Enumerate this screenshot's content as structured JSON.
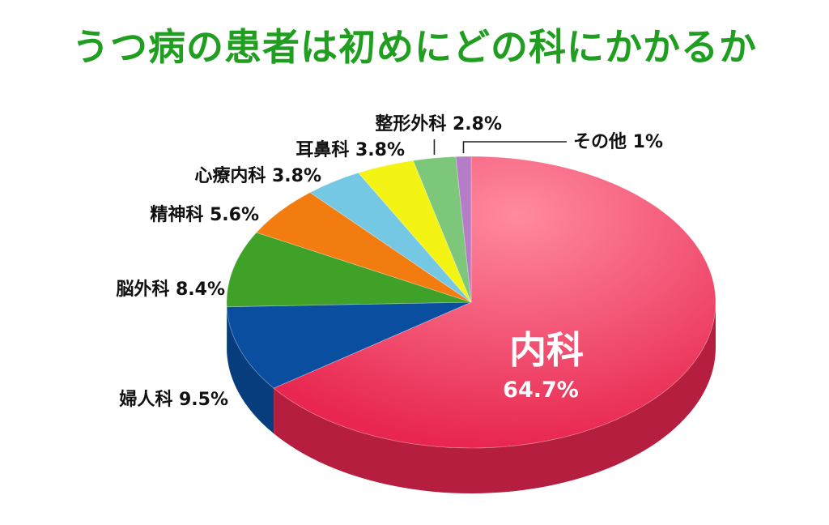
{
  "chart_data": {
    "type": "pie",
    "title": "うつ病の患者は初めにどの科にかかるか",
    "slices": [
      {
        "label": "内科",
        "value": 64.7,
        "value_label": "64.7%",
        "color": "#e8264f"
      },
      {
        "label": "婦人科",
        "value": 9.5,
        "value_label": "9.5%",
        "color": "#0a4ea0"
      },
      {
        "label": "脳外科",
        "value": 8.4,
        "value_label": "8.4%",
        "color": "#3fa127"
      },
      {
        "label": "精神科",
        "value": 5.6,
        "value_label": "5.6%",
        "color": "#f27c10"
      },
      {
        "label": "心療内科",
        "value": 3.8,
        "value_label": "3.8%",
        "color": "#74c8e4"
      },
      {
        "label": "耳鼻科",
        "value": 3.8,
        "value_label": "3.8%",
        "color": "#f3f314"
      },
      {
        "label": "整形外科",
        "value": 2.8,
        "value_label": "2.8%",
        "color": "#7cc77a"
      },
      {
        "label": "その他",
        "value": 1,
        "value_label": "1%",
        "color": "#b57cc7"
      }
    ],
    "title_color": "#1f9e1f",
    "style": "3d-tilted"
  }
}
